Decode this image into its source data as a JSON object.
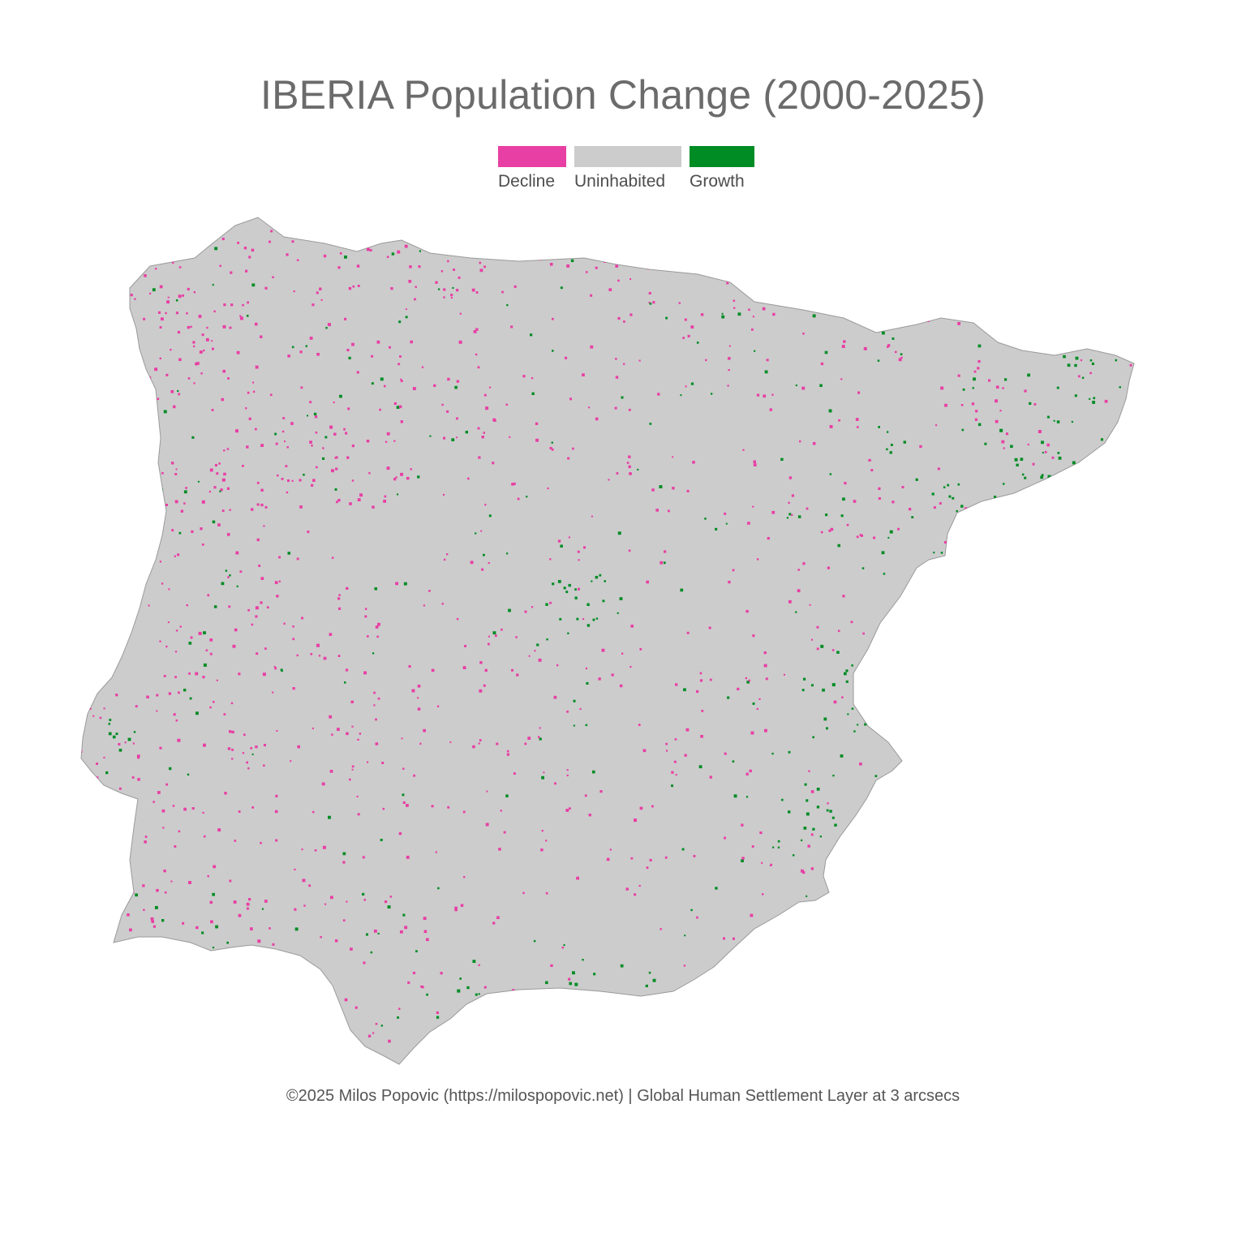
{
  "title": "IBERIA Population Change (2000-2025)",
  "legend": {
    "items": [
      {
        "key": "decline",
        "label": "Decline",
        "color": "#e83fa4"
      },
      {
        "key": "uninhabited",
        "label": "Uninhabited",
        "color": "#cccccc"
      },
      {
        "key": "growth",
        "label": "Growth",
        "color": "#008c25"
      }
    ]
  },
  "map": {
    "region": "Iberian Peninsula",
    "land_color": "#cccccc",
    "outline_color": "#9a9a9a"
  },
  "footer": "©2025 Milos Popovic (https://milospopovic.net) | Global Human Settlement Layer at 3 arcsecs"
}
